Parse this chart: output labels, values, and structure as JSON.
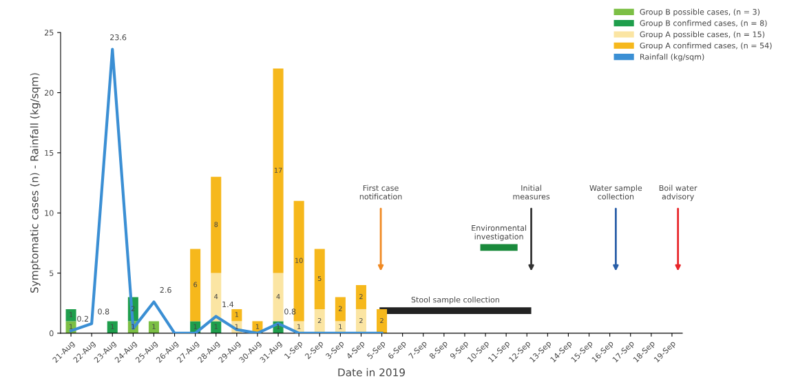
{
  "chart_data": {
    "type": "bar",
    "stacked": true,
    "xlabel": "Date in 2019",
    "ylabel": "Symptomatic cases (n) - Rainfall (kg/sqm)",
    "categories": [
      "21-Aug",
      "22-Aug",
      "23-Aug",
      "24-Aug",
      "25-Aug",
      "26-Aug",
      "27-Aug",
      "28-Aug",
      "29-Aug",
      "30-Aug",
      "31-Aug",
      "1-Sep",
      "2-Sep",
      "3-Sep",
      "4-Sep",
      "5-Sep",
      "6-Sep",
      "7-Sep",
      "8-Sep",
      "9-Sep",
      "10-Sep",
      "11-Sep",
      "12-Sep",
      "13-Sep",
      "14-Sep",
      "15-Sep",
      "16-Sep",
      "17-Sep",
      "18-Sep",
      "19-Sep"
    ],
    "series": [
      {
        "name": "Group B possible cases, (n = 3)",
        "color": "#7cbf45",
        "values": [
          1,
          0,
          0,
          1,
          1,
          0,
          0,
          0,
          0,
          0,
          0,
          0,
          0,
          0,
          0,
          0,
          0,
          0,
          0,
          0,
          0,
          0,
          0,
          0,
          0,
          0,
          0,
          0,
          0,
          0
        ],
        "value_labels": [
          "1",
          null,
          null,
          "1",
          "1",
          null,
          null,
          null,
          null,
          null,
          null,
          null,
          null,
          null,
          null,
          null,
          null,
          null,
          null,
          null,
          null,
          null,
          null,
          null,
          null,
          null,
          null,
          null,
          null,
          null
        ]
      },
      {
        "name": "Group B confirmed cases, (n = 8)",
        "color": "#1f9e4c",
        "values": [
          1,
          0,
          1,
          2,
          0,
          0,
          1,
          1,
          0,
          0,
          1,
          0,
          0,
          0,
          0,
          0,
          0,
          0,
          0,
          0,
          0,
          0,
          0,
          0,
          0,
          0,
          0,
          0,
          0,
          0
        ],
        "value_labels": [
          "1",
          null,
          "1",
          "2",
          null,
          null,
          "1",
          "1",
          null,
          null,
          "1",
          null,
          null,
          null,
          null,
          null,
          null,
          null,
          null,
          null,
          null,
          null,
          null,
          null,
          null,
          null,
          null,
          null,
          null,
          null
        ]
      },
      {
        "name": "Group A possible cases, (n = 15)",
        "color": "#fbe5a3",
        "values": [
          0,
          0,
          0,
          0,
          0,
          0,
          0,
          4,
          1,
          0,
          4,
          1,
          2,
          1,
          2,
          0,
          0,
          0,
          0,
          0,
          0,
          0,
          0,
          0,
          0,
          0,
          0,
          0,
          0,
          0
        ],
        "value_labels": [
          null,
          null,
          null,
          null,
          null,
          null,
          null,
          "4",
          "1",
          null,
          "4",
          "1",
          "2",
          "1",
          "2",
          null,
          null,
          null,
          null,
          null,
          null,
          null,
          null,
          null,
          null,
          null,
          null,
          null,
          null,
          null
        ]
      },
      {
        "name": "Group A confirmed cases, (n = 54)",
        "color": "#f6b81c",
        "values": [
          0,
          0,
          0,
          0,
          0,
          0,
          6,
          8,
          1,
          1,
          17,
          10,
          5,
          2,
          2,
          2,
          0,
          0,
          0,
          0,
          0,
          0,
          0,
          0,
          0,
          0,
          0,
          0,
          0,
          0
        ],
        "value_labels": [
          null,
          null,
          null,
          null,
          null,
          null,
          "6",
          "8",
          "1",
          "1",
          "17",
          "10",
          "5",
          "2",
          "2",
          "2",
          null,
          null,
          null,
          null,
          null,
          null,
          null,
          null,
          null,
          null,
          null,
          null,
          null,
          null
        ]
      },
      {
        "name": "Rainfall (kg/sqm)",
        "type": "line",
        "color": "#3b8fd4",
        "values": [
          0.2,
          0.8,
          23.6,
          0.4,
          2.6,
          0,
          0,
          1.4,
          0.3,
          0,
          0.8,
          0,
          0,
          0,
          0,
          0,
          null,
          null,
          null,
          null,
          null,
          null,
          null,
          null,
          null,
          null,
          null,
          null,
          null,
          null
        ],
        "value_labels": [
          "0.2",
          "0.8",
          "23.6",
          null,
          "2.6",
          null,
          null,
          "1.4",
          null,
          null,
          "0.8",
          null,
          null,
          null,
          null,
          null,
          null,
          null,
          null,
          null,
          null,
          null,
          null,
          null,
          null,
          null,
          null,
          null,
          null,
          null
        ]
      }
    ],
    "ylim": [
      0,
      25
    ],
    "yticks": [
      0,
      5,
      10,
      15,
      20,
      25
    ],
    "legend": "top right",
    "annotations": [
      "First case\nnotification",
      "Initial\nmeasures",
      "Water sample\ncollection",
      "Boil water\nadvisory",
      "Stool sample collection",
      "Environmental\ninvestigation"
    ]
  }
}
